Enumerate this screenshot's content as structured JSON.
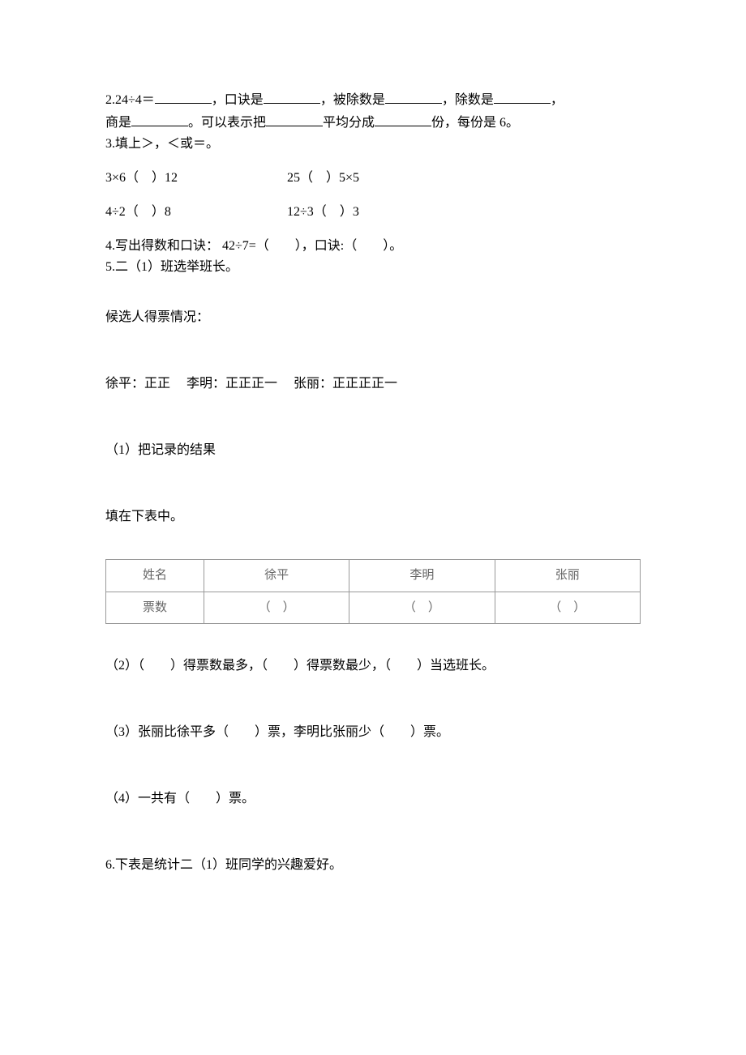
{
  "q2": {
    "prefix": "2.24÷4＝",
    "part1": "，口诀是",
    "part2": "，被除数是",
    "part3": "，除数是",
    "part4": "，",
    "line2_prefix": "商是",
    "line2_part1": "。可以表示把",
    "line2_part2": "平均分成",
    "line2_part3": "份，每份是 6。"
  },
  "q3": {
    "title": "3.填上＞，＜或＝。",
    "items": [
      {
        "left": "3×6（",
        "mid": "）12",
        "spacer": "",
        "right_left": "25（",
        "right_mid": "）5×5"
      },
      {
        "left": "4÷2（",
        "mid": "）8",
        "spacer": "",
        "right_left": "12÷3（",
        "right_mid": "）3"
      }
    ]
  },
  "q4": {
    "text": "4.写出得数和口诀： 42÷7=（　　），口诀:（　　）。"
  },
  "q5": {
    "title": "5.二（1）班选举班长。",
    "votes_label": "候选人得票情况：",
    "votes_data": "徐平：正正　 李明：正正正一　 张丽：正正正正一",
    "sub1_line1": "（1）把记录的结果",
    "sub1_line2": "填在下表中。",
    "table": {
      "headers": [
        "姓名",
        "徐平",
        "李明",
        "张丽"
      ],
      "row_label": "票数",
      "cells": [
        "（　）",
        "（　）",
        "（　）"
      ]
    },
    "sub2": "（2）（　　）得票数最多，（　　）得票数最少，（　　）当选班长。",
    "sub3": "（3）张丽比徐平多（　　）票，李明比张丽少（　　）票。",
    "sub4": "（4）一共有（　　）票。"
  },
  "q6": {
    "text": "6.下表是统计二（1）班同学的兴趣爱好。"
  }
}
